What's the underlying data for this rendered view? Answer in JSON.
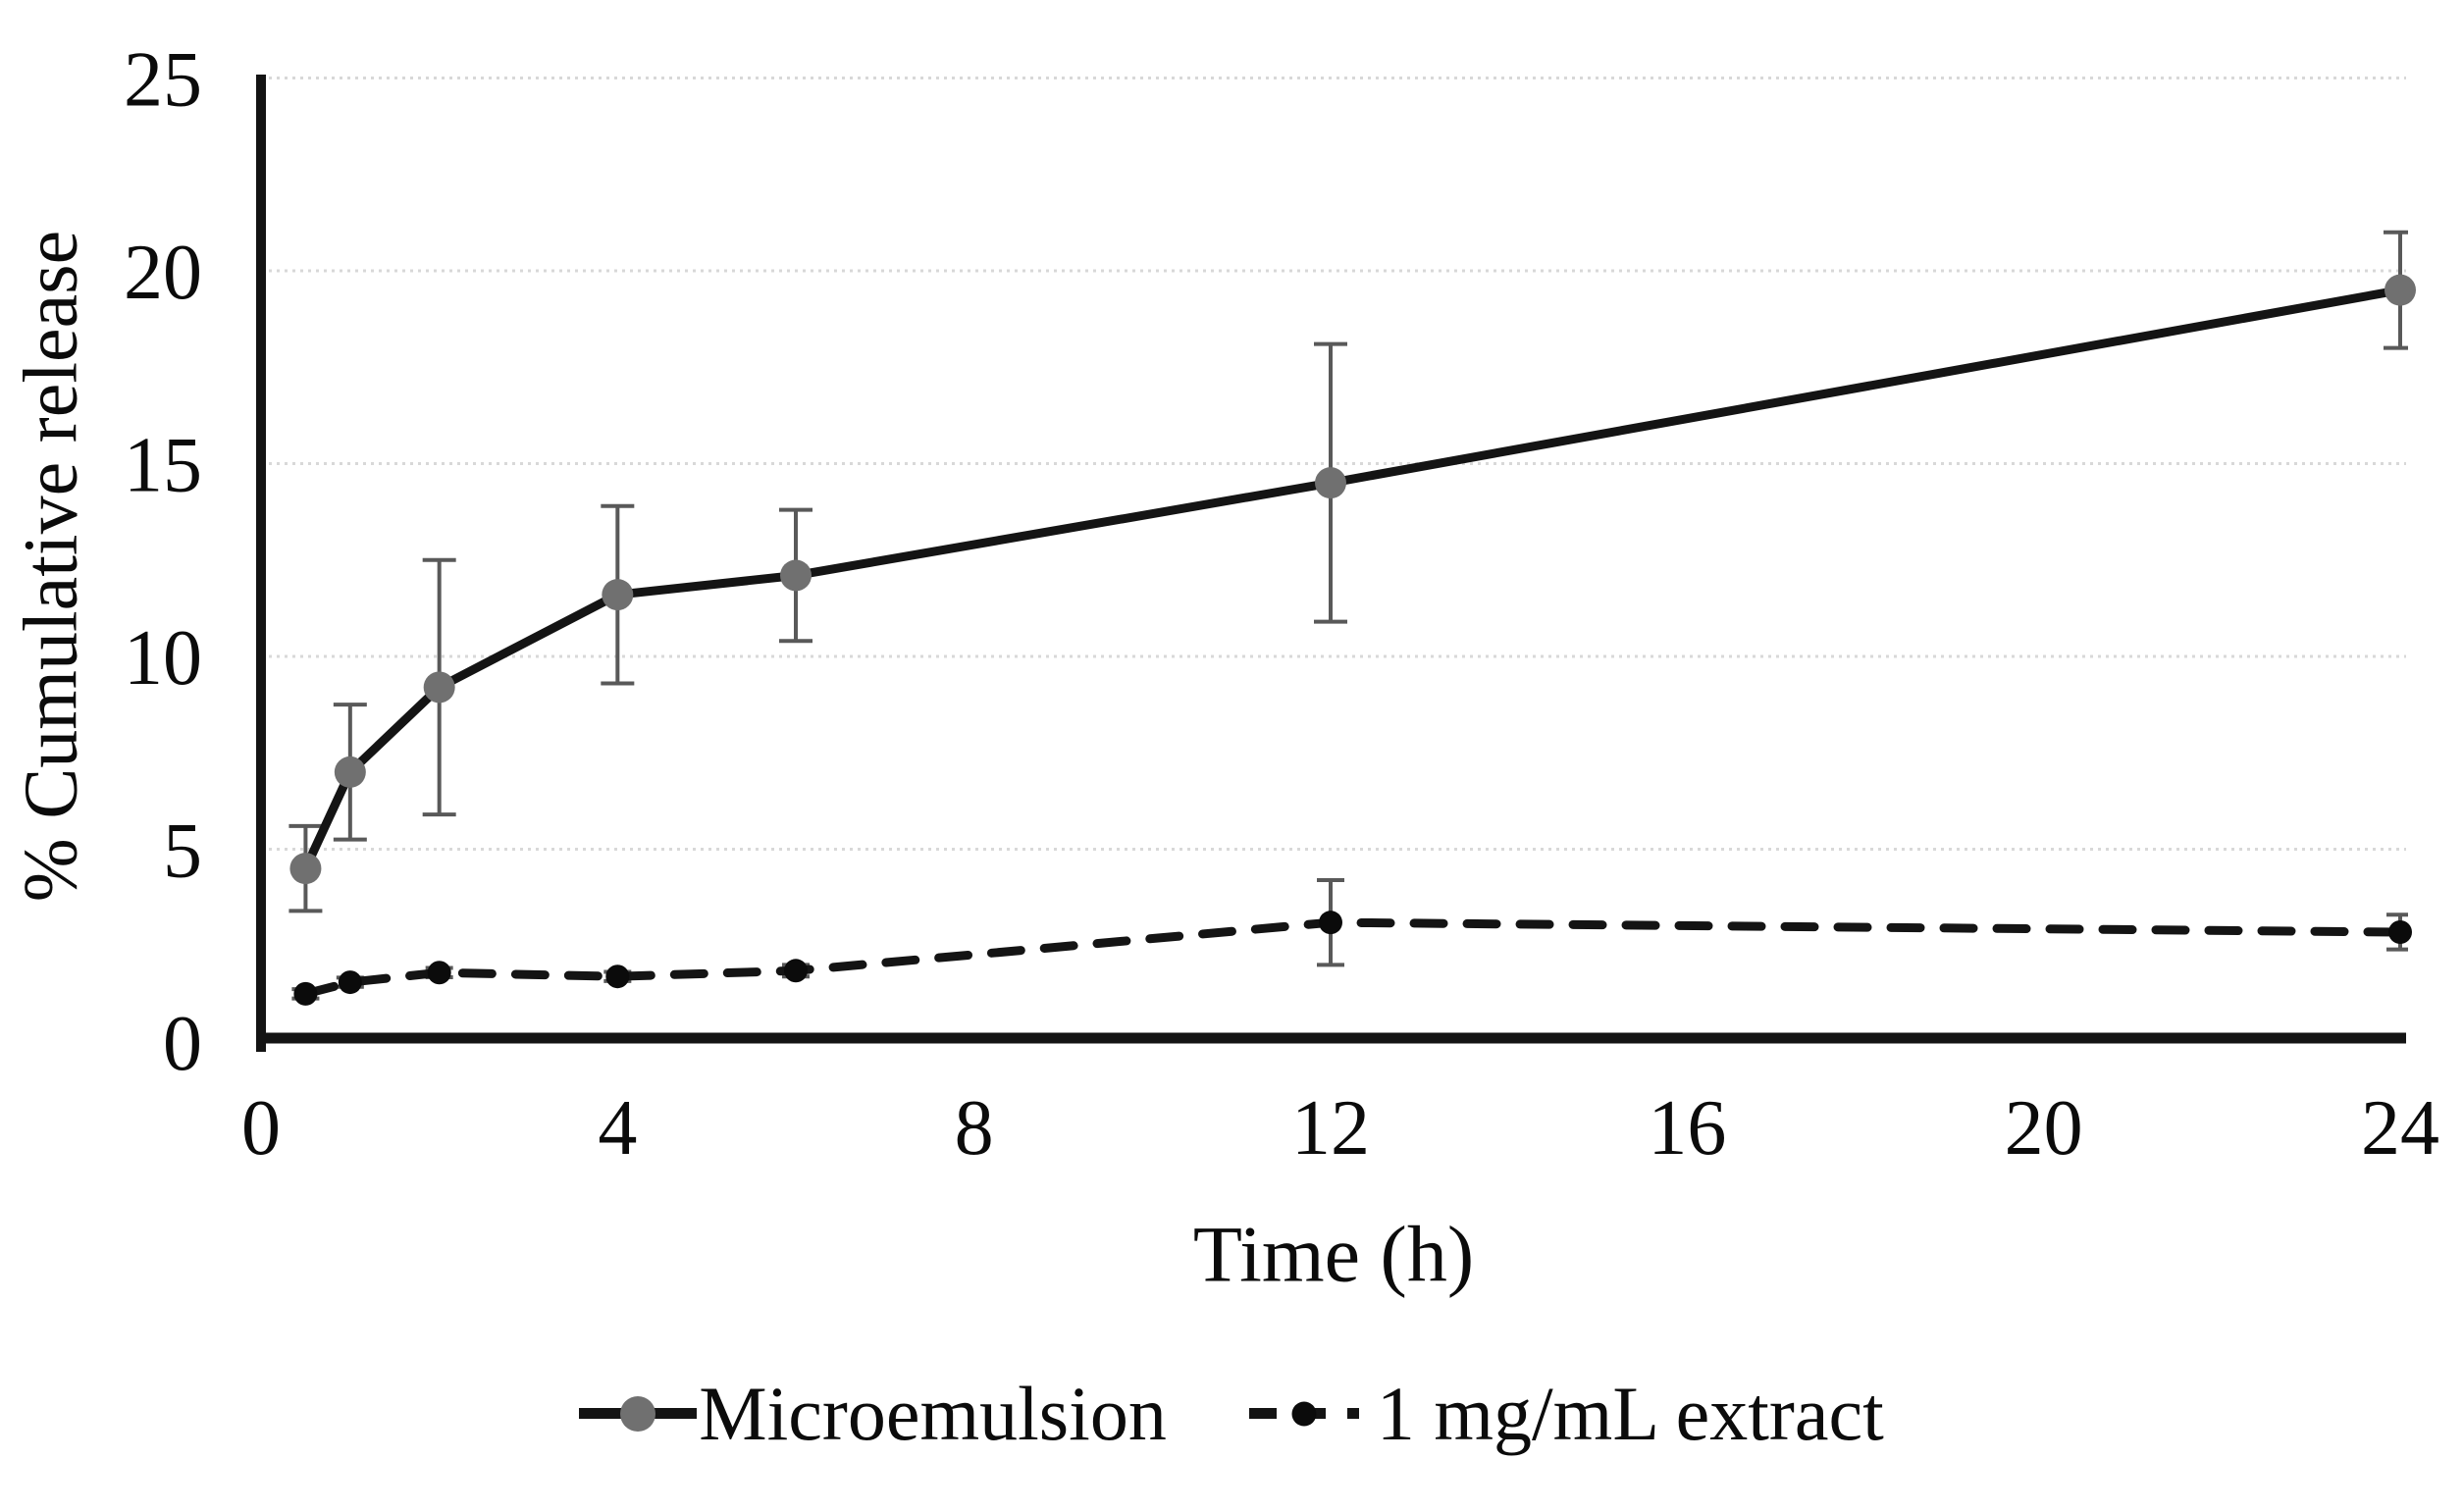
{
  "figure": {
    "background": "#ffffff"
  },
  "chart_data": {
    "type": "line",
    "title": "",
    "xlabel": "Time (h)",
    "ylabel": "% Cumulative release",
    "xlim": [
      0,
      24
    ],
    "ylim": [
      0,
      25
    ],
    "xticks": [
      0,
      4,
      8,
      12,
      16,
      20,
      24
    ],
    "yticks": [
      0,
      5,
      10,
      15,
      20,
      25
    ],
    "grid": "horizontal-dotted",
    "legend_position": "bottom-center",
    "x": [
      0.5,
      1,
      2,
      4,
      6,
      12,
      24
    ],
    "series": [
      {
        "name": "Microemulsion",
        "line_style": "solid",
        "line_color": "#141414",
        "marker": "circle",
        "marker_color": "#707070",
        "marker_radius": 16,
        "values": [
          4.5,
          7.0,
          9.2,
          11.6,
          12.1,
          14.5,
          19.5
        ],
        "errors": [
          1.1,
          1.75,
          3.3,
          2.3,
          1.7,
          3.6,
          1.5
        ]
      },
      {
        "name": "1 mg/mL extract",
        "line_style": "dashed",
        "line_color": "#141414",
        "marker": "circle",
        "marker_color": "#0b0b0b",
        "marker_radius": 12,
        "values": [
          1.25,
          1.55,
          1.8,
          1.7,
          1.85,
          3.1,
          2.85
        ],
        "errors": [
          0.12,
          0.12,
          0.12,
          0.12,
          0.15,
          1.1,
          0.45
        ]
      }
    ],
    "error_bar_color": "#595959",
    "gridline_color": "#d8d8d8",
    "axis_color": "#141414",
    "tick_label_color": "#0b0b0b"
  }
}
